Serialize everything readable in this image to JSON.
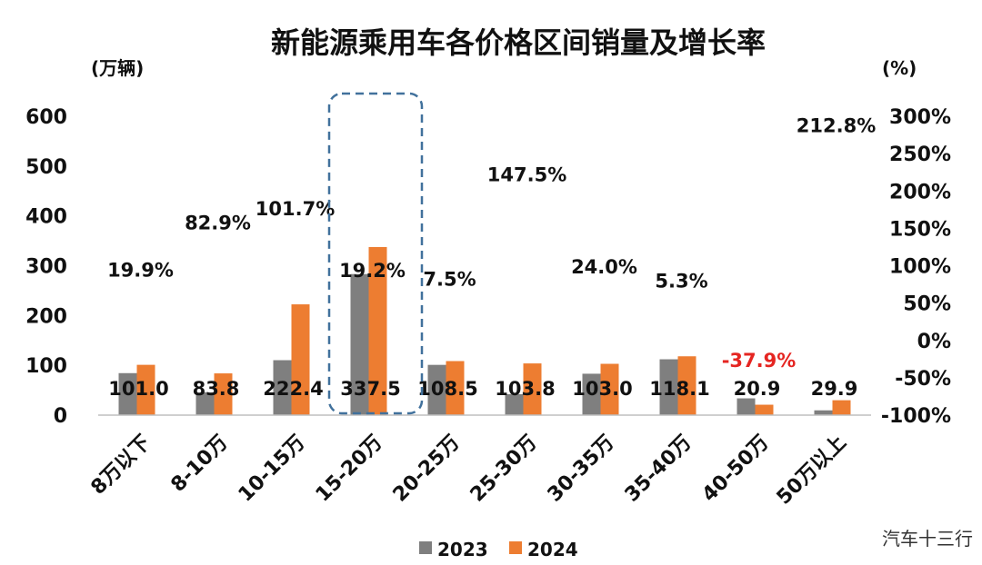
{
  "chart_data": {
    "type": "bar",
    "title": "新能源乘用车各价格区间销量及增长率",
    "ylabel_left": "(万辆)",
    "ylabel_right": "(%)",
    "ylim": [
      0,
      600
    ],
    "yticks": [
      "0",
      "100",
      "200",
      "300",
      "400",
      "500",
      "600"
    ],
    "y2lim": [
      -100,
      300
    ],
    "y2ticks": [
      "-100%",
      "-50%",
      "0%",
      "50%",
      "100%",
      "150%",
      "200%",
      "250%",
      "300%"
    ],
    "categories": [
      "8万以下",
      "8-10万",
      "10-15万",
      "15-20万",
      "20-25万",
      "25-30万",
      "30-35万",
      "35-40万",
      "40-50万",
      "50万以上"
    ],
    "series": [
      {
        "name": "2023",
        "color": "#7f7f7f",
        "values": [
          84.3,
          45.8,
          110.3,
          283.2,
          100.9,
          42.0,
          83.1,
          112.1,
          33.7,
          9.6
        ]
      },
      {
        "name": "2024",
        "color": "#ed7d31",
        "values": [
          101.0,
          83.8,
          222.4,
          337.5,
          108.5,
          103.8,
          103.0,
          118.1,
          20.9,
          29.9
        ]
      }
    ],
    "value_labels": [
      "101.0",
      "83.8",
      "222.4",
      "337.5",
      "108.5",
      "103.8",
      "103.0",
      "118.1",
      "20.9",
      "29.9"
    ],
    "growth_rates": [
      "19.9%",
      "82.9%",
      "101.7%",
      "19.2%",
      "7.5%",
      "147.5%",
      "24.0%",
      "5.3%",
      "-37.9%",
      "212.8%"
    ],
    "highlight_category": "15-20万",
    "negative_color": "#e52521",
    "highlight_color": "#41719c",
    "legend_position": "bottom-center",
    "grid": false
  },
  "watermark": "汽车十三行"
}
